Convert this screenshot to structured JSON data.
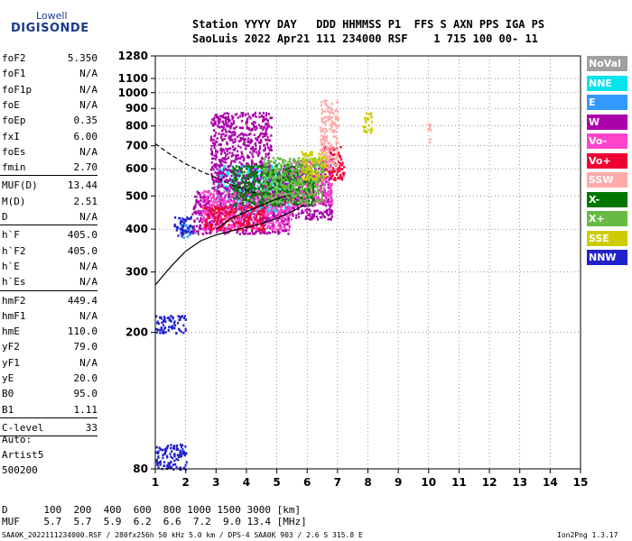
{
  "logo": {
    "line1": "Lowell",
    "line2": "DIGISONDE"
  },
  "header": {
    "row1": "Station YYYY DAY   DDD HHMMSS P1  FFS S AXN PPS IGA PS",
    "row2": "SaoLuis 2022 Apr21 111 234000 RSF    1 715 100 00- 11"
  },
  "params": [
    {
      "name": "foF2",
      "value": "5.350"
    },
    {
      "name": "foF1",
      "value": "N/A"
    },
    {
      "name": "foF1p",
      "value": "N/A"
    },
    {
      "name": "foE",
      "value": "N/A"
    },
    {
      "name": "foEp",
      "value": "0.35"
    },
    {
      "name": "fxI",
      "value": "6.00"
    },
    {
      "name": "foEs",
      "value": "N/A"
    },
    {
      "name": "fmin",
      "value": "2.70"
    },
    {
      "name": "MUF(D)",
      "value": "13.44"
    },
    {
      "name": "M(D)",
      "value": "2.51"
    },
    {
      "name": "D",
      "value": "N/A"
    },
    {
      "name": "h`F",
      "value": "405.0"
    },
    {
      "name": "h`F2",
      "value": "405.0"
    },
    {
      "name": "h`E",
      "value": "N/A"
    },
    {
      "name": "h`Es",
      "value": "N/A"
    },
    {
      "name": "hmF2",
      "value": "449.4"
    },
    {
      "name": "hmF1",
      "value": "N/A"
    },
    {
      "name": "hmE",
      "value": "110.0"
    },
    {
      "name": "yF2",
      "value": "79.0"
    },
    {
      "name": "yF1",
      "value": "N/A"
    },
    {
      "name": "yE",
      "value": "20.0"
    },
    {
      "name": "B0",
      "value": "95.0"
    },
    {
      "name": "B1",
      "value": "1.11"
    },
    {
      "name": "C-level",
      "value": "33"
    }
  ],
  "auto": {
    "line1": "Auto:",
    "line2": "Artist5",
    "line3": "500200"
  },
  "legend": [
    {
      "label": "NoVal",
      "color": "#a0a0a0"
    },
    {
      "label": "NNE",
      "color": "#00e5ee"
    },
    {
      "label": "E",
      "color": "#3399ff"
    },
    {
      "label": "W",
      "color": "#aa00aa"
    },
    {
      "label": "Vo-",
      "color": "#ff44cc"
    },
    {
      "label": "Vo+",
      "color": "#ee0033"
    },
    {
      "label": "SSW",
      "color": "#ffaaaa"
    },
    {
      "label": "X-",
      "color": "#007700"
    },
    {
      "label": "X+",
      "color": "#66bb44"
    },
    {
      "label": "SSE",
      "color": "#cccc00"
    },
    {
      "label": "NNW",
      "color": "#2222cc"
    }
  ],
  "bottom": {
    "row1": "D      100  200  400  600  800 1000 1500 3000 [km]",
    "row2": "MUF    5.7  5.7  5.9  6.2  6.6  7.2  9.0 13.4 [MHz]",
    "footer_left": "SAA0K_2022111234000.RSF / 280fx256h 50 kHz 5.0 km / DPS-4 SAA0K 903 / 2.6 S 315.8 E",
    "footer_right": "Ion2Png 1.3.17"
  },
  "chart_data": {
    "type": "scatter",
    "xlim": [
      1,
      15
    ],
    "ylim": [
      80,
      1280
    ],
    "y_scale": "log",
    "x_ticks": [
      1,
      2,
      3,
      4,
      5,
      6,
      7,
      8,
      9,
      10,
      11,
      12,
      13,
      14,
      15
    ],
    "y_ticks": [
      80,
      200,
      300,
      400,
      500,
      600,
      700,
      800,
      900,
      1000,
      1100,
      1280
    ],
    "grid": true,
    "series": [
      {
        "name": "NoVal",
        "color": "#a0a0a0",
        "regions": []
      },
      {
        "name": "NNE",
        "color": "#00e5ee",
        "regions": [
          [
            3.0,
            5.5,
            450,
            620
          ]
        ]
      },
      {
        "name": "E",
        "color": "#3399ff",
        "regions": [
          [
            1.8,
            2.3,
            380,
            420
          ]
        ]
      },
      {
        "name": "W",
        "color": "#aa00aa",
        "regions": [
          [
            2.2,
            5.4,
            390,
            520
          ],
          [
            5.0,
            6.8,
            430,
            620
          ],
          [
            2.8,
            4.8,
            520,
            880
          ]
        ]
      },
      {
        "name": "Vo-",
        "color": "#ff44cc",
        "regions": [
          [
            2.5,
            5.5,
            400,
            520
          ],
          [
            5.5,
            6.8,
            470,
            640
          ]
        ]
      },
      {
        "name": "Vo+",
        "color": "#ee0033",
        "regions": [
          [
            2.6,
            4.6,
            400,
            470
          ],
          [
            6.5,
            7.2,
            560,
            700
          ]
        ]
      },
      {
        "name": "SSW",
        "color": "#ffaaaa",
        "regions": [
          [
            6.4,
            7.0,
            600,
            960
          ],
          [
            9.95,
            10.05,
            720,
            820
          ]
        ]
      },
      {
        "name": "X-",
        "color": "#007700",
        "regions": [
          [
            3.5,
            6.2,
            470,
            620
          ]
        ]
      },
      {
        "name": "X+",
        "color": "#66bb44",
        "regions": [
          [
            4.5,
            6.5,
            480,
            650
          ]
        ]
      },
      {
        "name": "SSE",
        "color": "#cccc00",
        "regions": [
          [
            5.8,
            6.6,
            560,
            680
          ],
          [
            7.8,
            8.1,
            760,
            880
          ]
        ]
      },
      {
        "name": "NNW",
        "color": "#2222cc",
        "regions": [
          [
            1.6,
            2.2,
            385,
            440
          ],
          [
            1.0,
            2.0,
            200,
            225
          ],
          [
            1.0,
            2.0,
            80,
            95
          ]
        ]
      }
    ],
    "curves": [
      {
        "style": "dashed",
        "points": [
          [
            1.0,
            710
          ],
          [
            1.5,
            660
          ],
          [
            2.0,
            620
          ],
          [
            2.5,
            590
          ],
          [
            3.0,
            565
          ],
          [
            3.5,
            540
          ],
          [
            4.0,
            520
          ],
          [
            4.3,
            510
          ]
        ]
      },
      {
        "style": "solid",
        "points": [
          [
            1.0,
            275
          ],
          [
            1.5,
            310
          ],
          [
            2.0,
            345
          ],
          [
            2.5,
            370
          ],
          [
            3.0,
            385
          ],
          [
            3.5,
            395
          ],
          [
            4.0,
            405
          ],
          [
            4.5,
            415
          ],
          [
            5.0,
            430
          ],
          [
            5.5,
            450
          ],
          [
            5.9,
            470
          ]
        ]
      },
      {
        "style": "solid",
        "points": [
          [
            3.0,
            400
          ],
          [
            3.5,
            430
          ],
          [
            4.0,
            450
          ],
          [
            4.5,
            470
          ],
          [
            5.0,
            490
          ],
          [
            5.3,
            500
          ]
        ]
      }
    ]
  }
}
